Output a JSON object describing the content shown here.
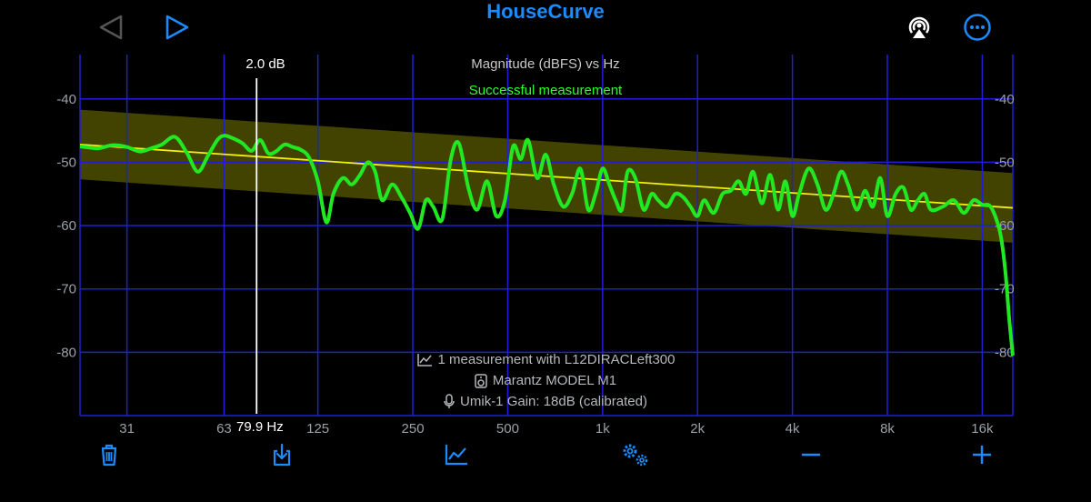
{
  "app": {
    "title": "HouseCurve"
  },
  "chart_header": {
    "title": "Magnitude (dBFS) vs Hz",
    "status": "Successful measurement"
  },
  "cursor": {
    "db_label": "2.0 dB",
    "hz_label": "79.9 Hz",
    "freq_hz": 79.9
  },
  "info": {
    "measurement": "1 measurement with L12DIRACLeft300",
    "speaker": "Marantz MODEL M1",
    "mic": "Umik-1  Gain: 18dB (calibrated)"
  },
  "icons": {
    "back": "back-triangle-icon",
    "play": "play-triangle-icon",
    "airplay": "airplay-icon",
    "more": "more-ellipsis-icon",
    "delete": "trash-icon",
    "export": "download-icon",
    "analyze": "line-chart-icon",
    "settings": "gears-icon",
    "zoom_out": "minus-icon",
    "zoom_in": "plus-icon"
  },
  "colors": {
    "accent": "#1a8cff",
    "grid": "#1f1fd6",
    "curve": "#22e822",
    "target": "#f2f200",
    "band": "#5a5a00",
    "status": "#2bff2b"
  },
  "chart_data": {
    "type": "line",
    "title": "Magnitude (dBFS) vs Hz",
    "x_scale": "log",
    "xlim": [
      22,
      20000
    ],
    "ylim": [
      -90,
      -33
    ],
    "x_ticks": [
      31,
      63,
      125,
      250,
      500,
      1000,
      2000,
      4000,
      8000,
      16000
    ],
    "x_tick_labels": [
      "31",
      "63",
      "125",
      "250",
      "500",
      "1k",
      "2k",
      "4k",
      "8k",
      "16k"
    ],
    "y_ticks": [
      -40,
      -50,
      -60,
      -70,
      -80
    ],
    "y_tick_labels": [
      "-40",
      "-50",
      "-60",
      "-70",
      "-80"
    ],
    "target": {
      "x": [
        22,
        20000
      ],
      "y": [
        -47.2,
        -57.2
      ],
      "band": 5.5
    },
    "series": [
      {
        "x": [
          22,
          25,
          28,
          31,
          34,
          37,
          40,
          44,
          48,
          52,
          56,
          60,
          63,
          67,
          72,
          77,
          82,
          87,
          92,
          98,
          104,
          110,
          117,
          125,
          133,
          140,
          150,
          160,
          170,
          180,
          190,
          200,
          215,
          230,
          245,
          260,
          275,
          290,
          310,
          330,
          350,
          375,
          400,
          430,
          460,
          490,
          520,
          550,
          580,
          620,
          660,
          700,
          750,
          800,
          850,
          900,
          950,
          1000,
          1050,
          1100,
          1150,
          1200,
          1270,
          1350,
          1430,
          1500,
          1600,
          1700,
          1800,
          1900,
          2000,
          2100,
          2250,
          2400,
          2550,
          2700,
          2850,
          3000,
          3200,
          3400,
          3600,
          3800,
          4000,
          4200,
          4500,
          4800,
          5100,
          5400,
          5700,
          6000,
          6400,
          6800,
          7200,
          7600,
          8000,
          8500,
          9000,
          9500,
          10000,
          10500,
          11000,
          12000,
          13000,
          14000,
          15000,
          16000,
          17000,
          18000,
          18500,
          19000,
          19500,
          20000
        ],
        "y": [
          -47.5,
          -47.8,
          -47.3,
          -47.6,
          -48.3,
          -47.8,
          -47.2,
          -46.0,
          -48.5,
          -51.5,
          -49.0,
          -46.5,
          -45.8,
          -46.2,
          -47.0,
          -48.2,
          -46.5,
          -48.6,
          -48.3,
          -47.2,
          -47.6,
          -48.0,
          -49.2,
          -53.0,
          -59.5,
          -55.0,
          -52.5,
          -53.5,
          -52.0,
          -50.0,
          -51.5,
          -56.0,
          -53.5,
          -55.5,
          -58.0,
          -60.5,
          -56.0,
          -57.0,
          -59.0,
          -49.5,
          -47.0,
          -54.0,
          -57.5,
          -53.0,
          -58.5,
          -56.0,
          -47.5,
          -49.5,
          -46.5,
          -52.5,
          -48.8,
          -53.5,
          -57.0,
          -55.0,
          -51.0,
          -57.5,
          -55.0,
          -51.0,
          -53.5,
          -56.0,
          -57.5,
          -51.5,
          -52.5,
          -57.5,
          -55.0,
          -56.0,
          -57.0,
          -55.0,
          -55.5,
          -57.0,
          -58.5,
          -56.0,
          -58.0,
          -55.0,
          -54.5,
          -53.0,
          -55.0,
          -51.5,
          -56.5,
          -52.0,
          -57.5,
          -53.0,
          -58.5,
          -55.0,
          -51.0,
          -53.5,
          -57.5,
          -55.0,
          -51.5,
          -53.5,
          -57.5,
          -54.5,
          -57.0,
          -52.5,
          -58.5,
          -55.0,
          -54.0,
          -57.5,
          -56.0,
          -55.0,
          -57.5,
          -57.0,
          -56.0,
          -58.0,
          -56.0,
          -56.7,
          -57.0,
          -60.0,
          -63.0,
          -68.0,
          -75.0,
          -80.5
        ]
      }
    ]
  }
}
